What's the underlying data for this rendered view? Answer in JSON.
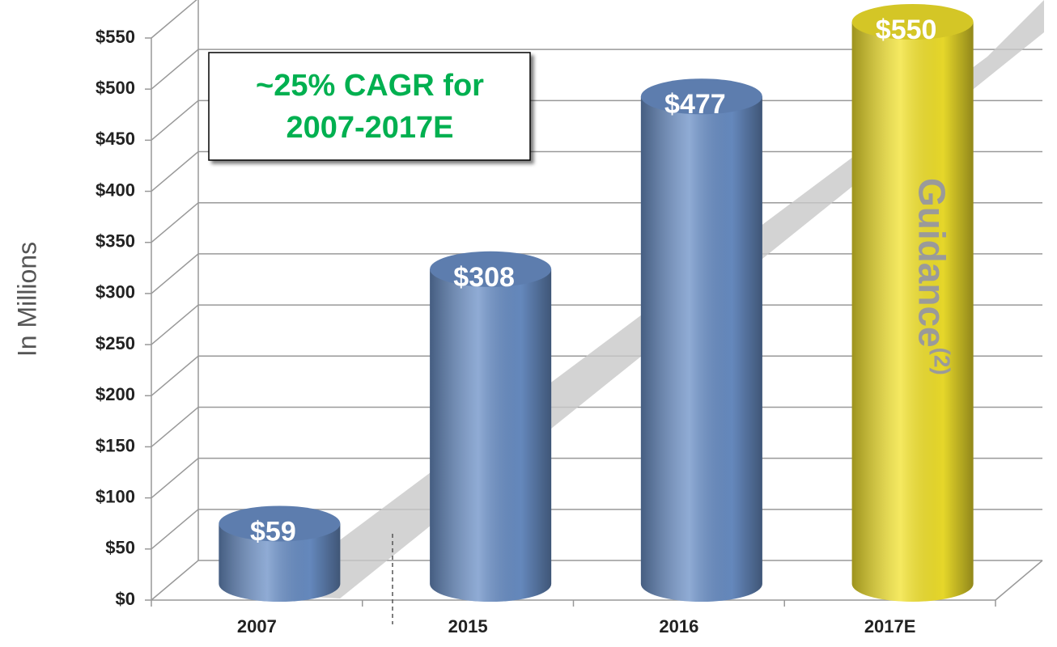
{
  "chart_data": {
    "type": "bar",
    "y_label": "In Millions",
    "categories": [
      "2007",
      "2015",
      "2016",
      "2017E"
    ],
    "values": [
      59,
      308,
      477,
      550
    ],
    "value_labels": [
      "$59",
      "$308",
      "$477",
      "$550"
    ],
    "colors": [
      "#6a8fc6",
      "#6a8fc6",
      "#6a8fc6",
      "#f2e22c"
    ],
    "ylim": [
      0,
      550
    ],
    "yticks": [
      {
        "value": 0,
        "label": "$0"
      },
      {
        "value": 50,
        "label": "$50"
      },
      {
        "value": 100,
        "label": "$100"
      },
      {
        "value": 150,
        "label": "$150"
      },
      {
        "value": 200,
        "label": "$200"
      },
      {
        "value": 250,
        "label": "$250"
      },
      {
        "value": 300,
        "label": "$300"
      },
      {
        "value": 350,
        "label": "$350"
      },
      {
        "value": 400,
        "label": "$400"
      },
      {
        "value": 450,
        "label": "$450"
      },
      {
        "value": 500,
        "label": "$500"
      },
      {
        "value": 550,
        "label": "$550"
      }
    ],
    "grid": true,
    "annotation": [
      "~25% CAGR for",
      "2007-2017E"
    ],
    "guidance_label": "Guidance",
    "guidance_note": "(2)"
  }
}
